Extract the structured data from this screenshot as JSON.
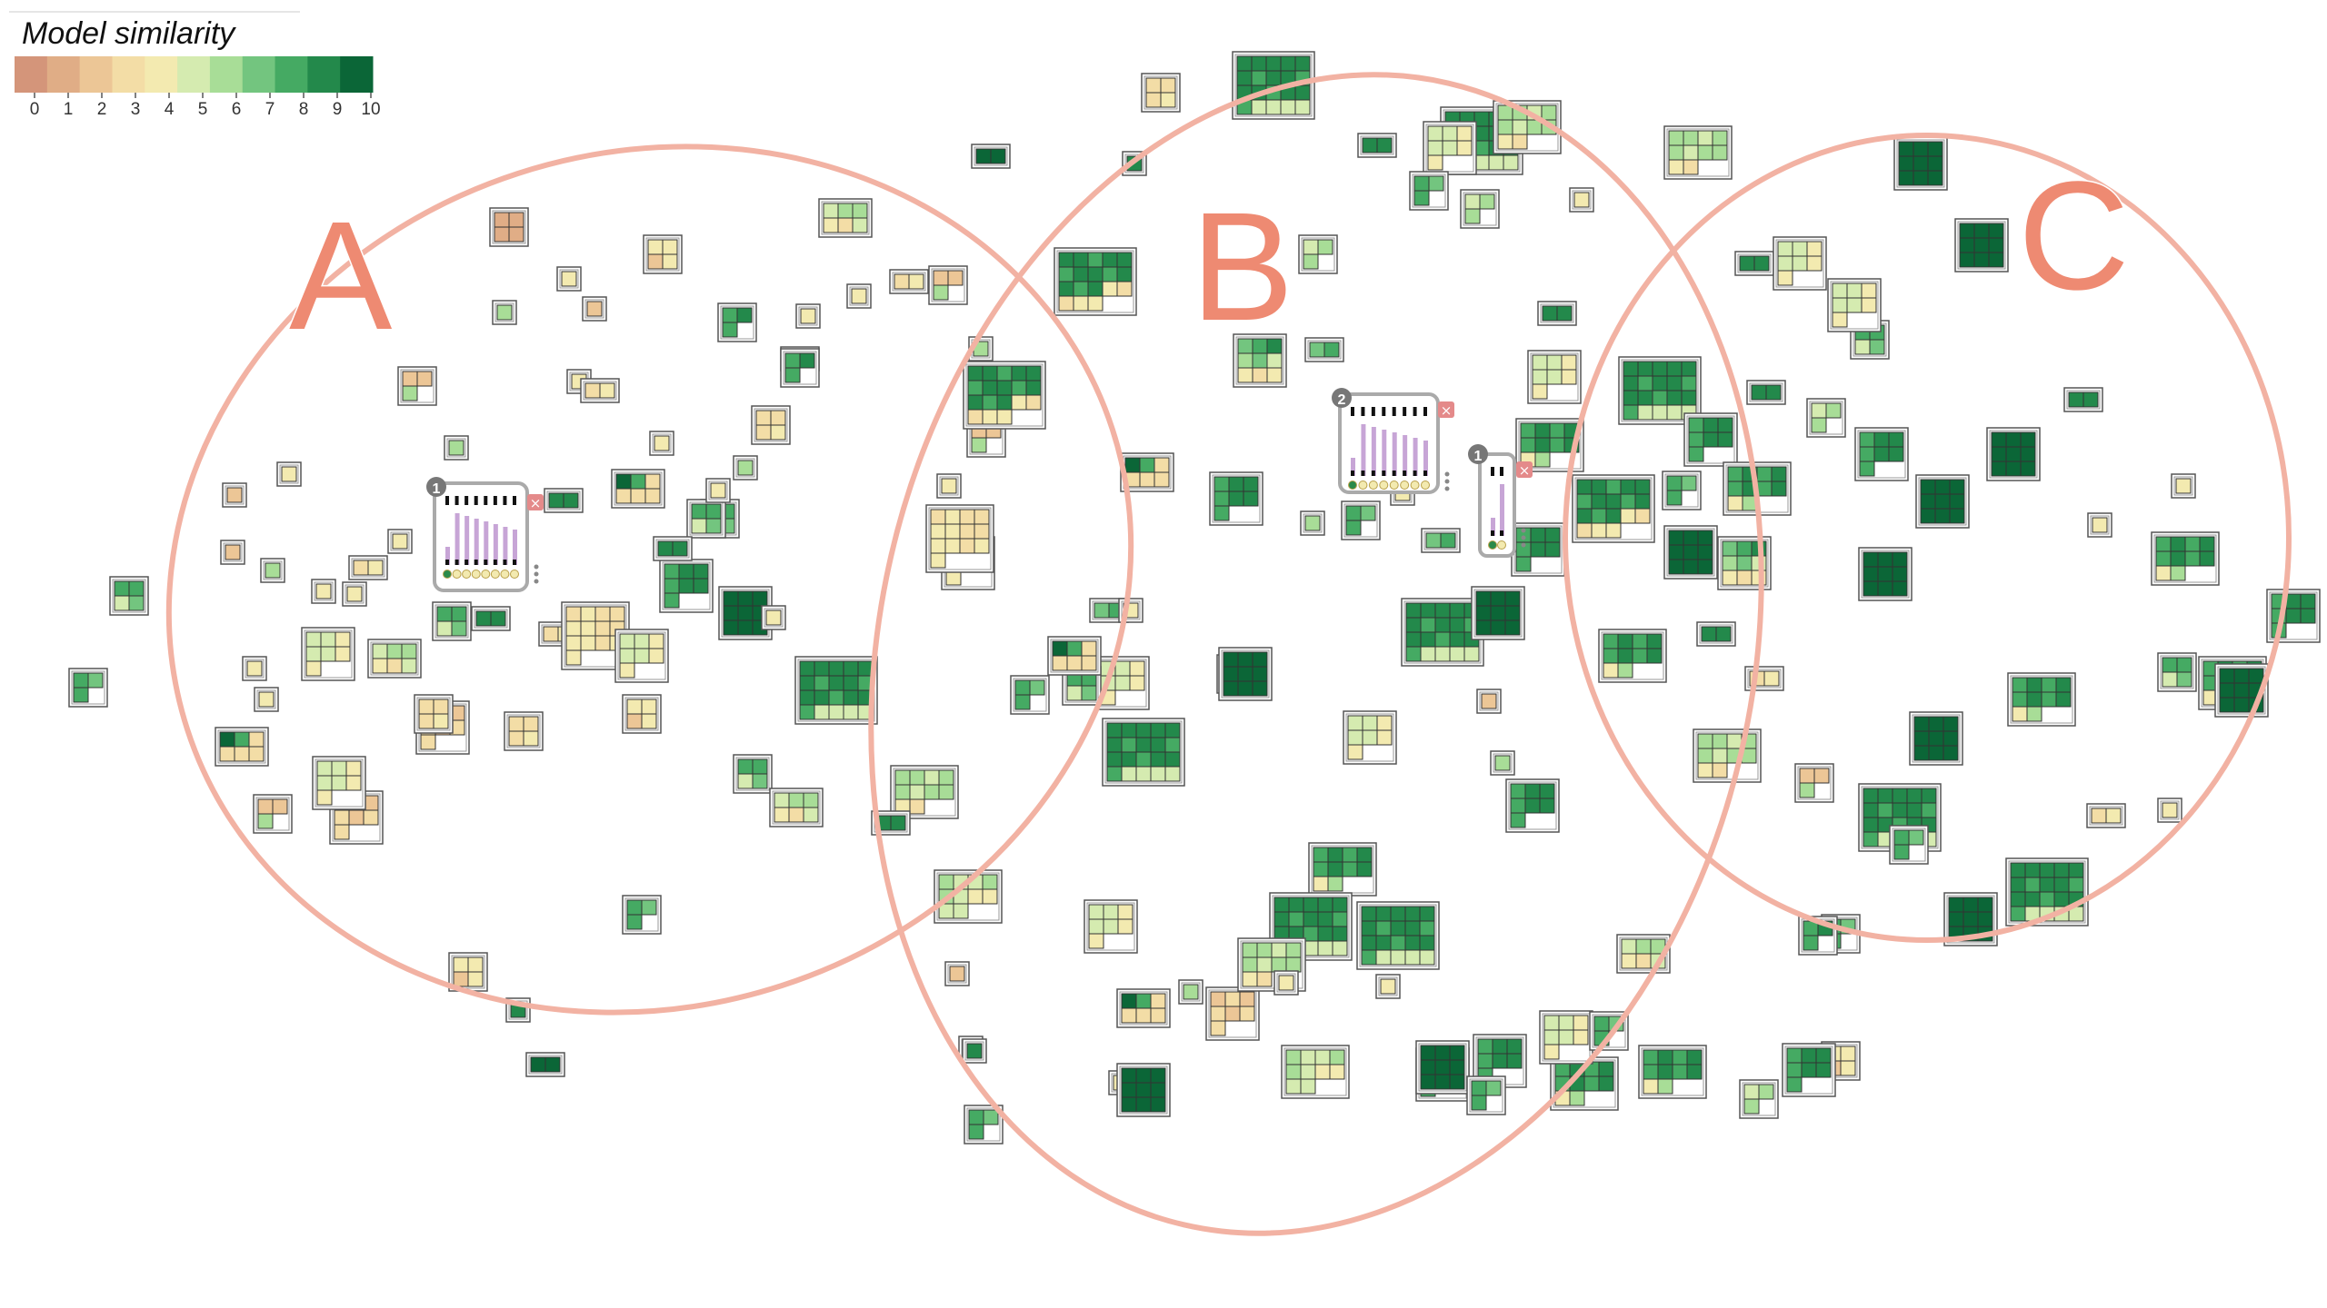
{
  "legend": {
    "title": "Model similarity",
    "ticks": [
      "0",
      "1",
      "2",
      "3",
      "4",
      "5",
      "6",
      "7",
      "8",
      "9",
      "10"
    ],
    "colors": [
      "#d4957a",
      "#e0ad86",
      "#ecc696",
      "#f3dda6",
      "#f3eab0",
      "#d5ebb0",
      "#a8dd97",
      "#73c57f",
      "#45aa63",
      "#23894b",
      "#0b6637"
    ]
  },
  "clusters": [
    {
      "label": "A",
      "color": "#f2b2a3"
    },
    {
      "label": "B",
      "color": "#f2b2a3"
    },
    {
      "label": "C",
      "color": "#f2b2a3"
    }
  ],
  "selected_nodes": [
    {
      "badge": "1"
    },
    {
      "badge": "2"
    },
    {
      "badge": "1"
    }
  ],
  "model_glyphs": [
    {
      "cells": [
        1,
        1,
        1,
        1
      ],
      "cols": 2
    },
    {
      "cells": [
        10,
        10
      ],
      "cols": 2
    },
    {
      "cells": [
        4,
        4,
        2,
        4
      ],
      "cols": 2
    },
    {
      "cells": [
        9
      ],
      "cols": 1
    },
    {
      "cells": [
        5,
        6,
        6,
        4,
        3,
        5
      ],
      "cols": 3
    },
    {
      "cells": [
        4
      ],
      "cols": 1
    },
    {
      "cells": [
        9,
        9,
        8,
        9,
        9,
        8,
        9,
        9,
        8,
        9,
        9,
        8,
        9,
        4,
        3,
        3,
        4,
        4
      ],
      "cols": 5
    },
    {
      "cells": [
        3,
        3,
        3,
        4
      ],
      "cols": 2
    },
    {
      "cells": [
        8,
        9,
        8
      ],
      "cols": 2
    },
    {
      "cells": [
        5,
        6,
        6
      ],
      "cols": 2
    },
    {
      "cells": [
        2,
        2,
        6
      ],
      "cols": 2
    },
    {
      "cells": [
        4
      ],
      "cols": 1
    },
    {
      "cells": [
        7,
        8
      ],
      "cols": 2
    },
    {
      "cells": [
        3,
        4
      ],
      "cols": 2
    },
    {
      "cells": [
        6
      ],
      "cols": 1
    },
    {
      "cells": [
        5,
        5,
        4,
        5,
        5,
        4,
        4
      ],
      "cols": 3
    },
    {
      "cells": [
        4
      ],
      "cols": 1
    },
    {
      "cells": [
        7,
        8,
        9,
        6,
        7,
        5,
        4,
        3,
        4
      ],
      "cols": 3
    },
    {
      "cells": [
        10,
        8,
        3,
        3,
        3,
        3
      ],
      "cols": 3
    },
    {
      "cells": [
        2
      ],
      "cols": 1
    },
    {
      "cells": [
        9,
        9
      ],
      "cols": 2
    },
    {
      "cells": [
        8,
        8,
        5,
        7
      ],
      "cols": 2
    },
    {
      "cells": [
        8,
        9,
        9,
        8,
        9,
        9,
        8
      ],
      "cols": 3
    },
    {
      "cells": [
        3,
        4,
        3,
        3,
        4,
        4,
        3,
        3,
        4,
        4,
        3,
        4,
        4
      ],
      "cols": 4
    },
    {
      "cells": [
        8,
        7,
        8
      ],
      "cols": 2
    },
    {
      "cells": [
        2,
        3,
        2,
        3,
        2,
        3,
        3
      ],
      "cols": 3
    },
    {
      "cells": [
        6,
        6,
        5,
        6,
        6,
        5,
        6,
        6,
        4,
        3
      ],
      "cols": 4
    },
    {
      "cells": [
        9,
        9,
        9,
        9,
        9,
        9,
        8,
        9,
        9,
        8,
        9,
        9,
        8,
        9,
        9,
        8,
        5,
        5,
        5,
        5
      ],
      "cols": 5
    },
    {
      "cells": [
        8,
        9,
        8,
        9,
        8,
        9,
        8,
        9,
        4,
        6
      ],
      "cols": 4
    },
    {
      "cells": [
        6,
        5,
        5,
        6,
        6,
        5,
        4,
        4,
        5,
        5
      ],
      "cols": 4
    },
    {
      "cells": [
        10,
        10,
        10,
        10,
        10,
        10,
        10,
        10,
        10
      ],
      "cols": 3
    }
  ]
}
